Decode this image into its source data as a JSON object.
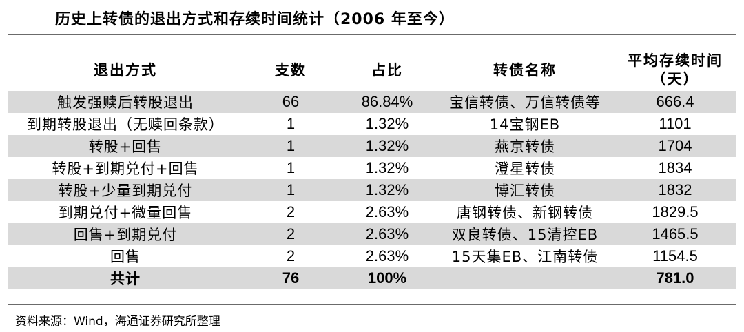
{
  "title": "历史上转债的退出方式和存续时间统计（2006 年至今）",
  "table": {
    "headers": [
      "退出方式",
      "支数",
      "占比",
      "转债名称",
      "平均存续时间",
      "（天）"
    ],
    "rows": [
      {
        "method": "触发强赎后转股退出",
        "count": "66",
        "share": "86.84%",
        "names": "宝信转债、万信转债等",
        "avg_days": "666.4"
      },
      {
        "method": "到期转股退出（无赎回条款）",
        "count": "1",
        "share": "1.32%",
        "names": "14宝钢EB",
        "avg_days": "1101"
      },
      {
        "method": "转股+回售",
        "count": "1",
        "share": "1.32%",
        "names": "燕京转债",
        "avg_days": "1704"
      },
      {
        "method": "转股+到期兑付+回售",
        "count": "1",
        "share": "1.32%",
        "names": "澄星转债",
        "avg_days": "1834"
      },
      {
        "method": "转股+少量到期兑付",
        "count": "1",
        "share": "1.32%",
        "names": "博汇转债",
        "avg_days": "1832"
      },
      {
        "method": "到期兑付+微量回售",
        "count": "2",
        "share": "2.63%",
        "names": "唐钢转债、新钢转债",
        "avg_days": "1829.5"
      },
      {
        "method": "回售+到期兑付",
        "count": "2",
        "share": "2.63%",
        "names": "双良转债、15清控EB",
        "avg_days": "1465.5"
      },
      {
        "method": "回售",
        "count": "2",
        "share": "2.63%",
        "names": "15天集EB、江南转债",
        "avg_days": "1154.5"
      }
    ],
    "total": {
      "method": "共计",
      "count": "76",
      "share": "100%",
      "names": "",
      "avg_days": "781.0"
    }
  },
  "source": "资料来源：Wind，海通证券研究所整理"
}
